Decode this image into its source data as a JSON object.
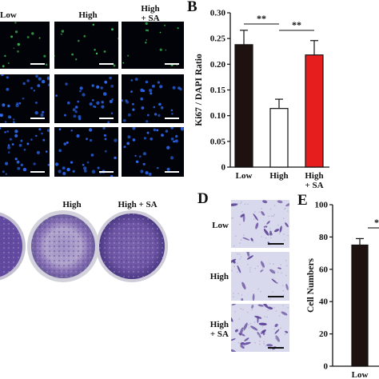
{
  "panel_a": {
    "columns": [
      "Low",
      "High",
      "High\n+ SA"
    ],
    "rows": [
      {
        "stain": "green"
      },
      {
        "stain": "blue"
      },
      {
        "stain": "blue-merge"
      }
    ],
    "colors": {
      "ki67": "#3fcf5a",
      "dapi": "#2f6fff",
      "background": "#020308"
    }
  },
  "panel_b": {
    "letter": "B",
    "significance": [
      "**",
      "**"
    ]
  },
  "panel_c": {
    "labels": [
      "High",
      "High + SA"
    ],
    "colors": {
      "stain": "#6b4ea6",
      "dish": "#c9c6d6"
    }
  },
  "panel_d": {
    "letter": "D",
    "rows": [
      "Low",
      "High",
      "High\n+ SA"
    ],
    "colors": {
      "background": "#d8d9ec",
      "cells": "#5a3f95"
    }
  },
  "panel_e": {
    "letter": "E",
    "significance": "**"
  },
  "chart_data": [
    {
      "type": "bar",
      "categories": [
        "Low",
        "High",
        "High\n+ SA"
      ],
      "values": [
        0.238,
        0.114,
        0.218
      ],
      "errors": [
        0.028,
        0.018,
        0.028
      ],
      "colors": [
        "#1e1211",
        "#ffffff",
        "#e61e1e"
      ],
      "ylabel": "Ki67 / DAPI Ratio",
      "ylim": [
        0,
        0.3
      ],
      "yticks": [
        "0",
        "0.05",
        "0.10",
        "0.15",
        "0.20",
        "0.25",
        "0.30"
      ],
      "grid": false
    },
    {
      "type": "bar",
      "categories": [
        "Low"
      ],
      "values": [
        75
      ],
      "errors": [
        4
      ],
      "colors": [
        "#1e1211"
      ],
      "ylabel": "Cell Numbers",
      "ylim": [
        0,
        100
      ],
      "yticks": [
        "0",
        "20",
        "40",
        "60",
        "80",
        "100"
      ],
      "grid": false
    }
  ]
}
